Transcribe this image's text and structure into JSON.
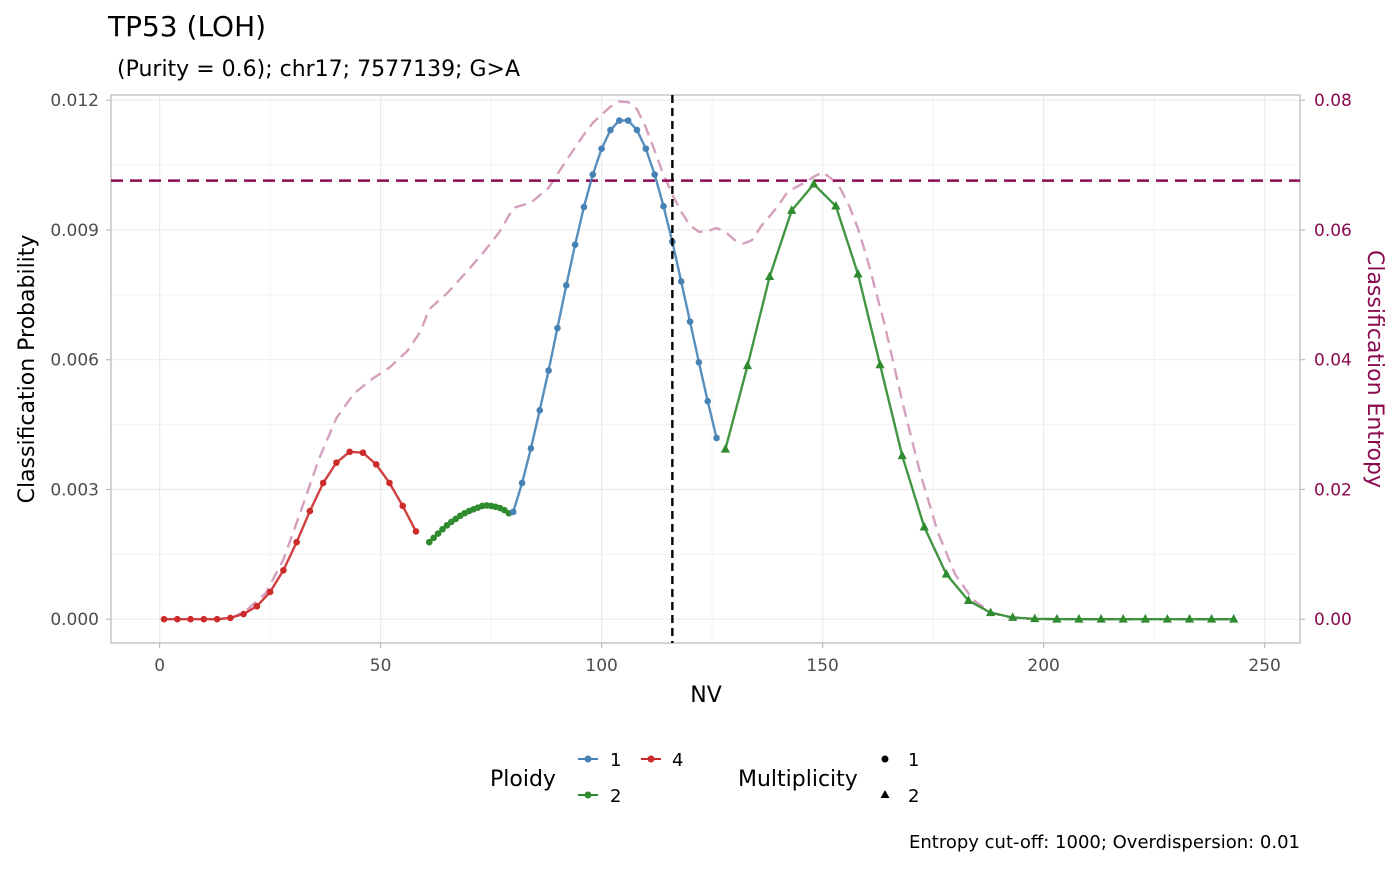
{
  "chart_data": {
    "type": "line",
    "title": "TP53 (LOH)",
    "subtitle": " (Purity = 0.6); chr17; 7577139; G>A",
    "caption": "Entropy cut-off: 1000; Overdispersion: 0.01",
    "xlabel": "NV",
    "ylabel": "Classification Probability",
    "y2label": "Classification Entropy",
    "xlim": [
      -11,
      258
    ],
    "ylim": [
      -0.00055,
      0.01212
    ],
    "y2lim": [
      -0.00367,
      0.0808
    ],
    "xticks": [
      0,
      50,
      100,
      150,
      200,
      250
    ],
    "xtick_labels": [
      "0",
      "50",
      "100",
      "150",
      "200",
      "250"
    ],
    "yticks": [
      0,
      0.003,
      0.006,
      0.009,
      0.012
    ],
    "ytick_labels": [
      "0.000",
      "0.003",
      "0.006",
      "0.009",
      "0.012"
    ],
    "y2ticks": [
      0,
      0.02,
      0.04,
      0.06,
      0.08
    ],
    "y2tick_labels": [
      "0.00",
      "0.02",
      "0.04",
      "0.06",
      "0.08"
    ],
    "grid": true,
    "vline_x": 116,
    "hline_entropy": 0.0676,
    "colors": {
      "ploidy_1": "#4682B4",
      "ploidy_2": "#2E8B2E",
      "ploidy_4": "#CC2B2B",
      "entropy": "#8B0A50",
      "entropy_curve": "#D4A0BE",
      "vline": "#000000",
      "grid": "#EBEBEB",
      "axis_text": "#4D4D4D"
    },
    "legend": {
      "position": "bottom",
      "ploidy_title": "Ploidy",
      "ploidy_items": [
        {
          "label": "1",
          "color": "#4682B4"
        },
        {
          "label": "2",
          "color": "#2E8B2E"
        },
        {
          "label": "4",
          "color": "#CC2B2B"
        }
      ],
      "multiplicity_title": "Multiplicity",
      "multiplicity_items": [
        {
          "label": "1",
          "shape": "circle"
        },
        {
          "label": "2",
          "shape": "triangle"
        }
      ]
    },
    "series": [
      {
        "ploidy": "4",
        "multiplicity": "1",
        "shape": "circle",
        "color": "#CC2B2B",
        "x": [
          1,
          4,
          7,
          10,
          13,
          16,
          19,
          22,
          25,
          28,
          31,
          34,
          37,
          40,
          43,
          46,
          49,
          52,
          55,
          58
        ],
        "y": [
          0,
          0,
          0,
          0,
          0,
          3e-05,
          0.00012,
          0.0003,
          0.00063,
          0.00113,
          0.00178,
          0.0025,
          0.00315,
          0.00362,
          0.00387,
          0.00385,
          0.00358,
          0.00315,
          0.00262,
          0.00203
        ]
      },
      {
        "ploidy": "2",
        "multiplicity": "1",
        "shape": "circle",
        "color": "#2E8B2E",
        "x": [
          61,
          62,
          63,
          64,
          65,
          66,
          67,
          68,
          69,
          70,
          71,
          72,
          73,
          74,
          75,
          76,
          77,
          78,
          79
        ],
        "y": [
          0.00178,
          0.00188,
          0.00198,
          0.00208,
          0.00217,
          0.00225,
          0.00232,
          0.00239,
          0.00245,
          0.0025,
          0.00254,
          0.00258,
          0.00262,
          0.00263,
          0.00262,
          0.0026,
          0.00257,
          0.00252,
          0.00245
        ]
      },
      {
        "ploidy": "1",
        "multiplicity": "1",
        "shape": "circle",
        "color": "#4682B4",
        "x": [
          80,
          82,
          84,
          86,
          88,
          90,
          92,
          94,
          96,
          98,
          100,
          102,
          104,
          106,
          108,
          110,
          112,
          114,
          116,
          118,
          120,
          122,
          124,
          126
        ],
        "y": [
          0.00248,
          0.00315,
          0.00395,
          0.00483,
          0.00575,
          0.00673,
          0.00772,
          0.00866,
          0.00953,
          0.01028,
          0.01088,
          0.01131,
          0.01153,
          0.01153,
          0.01131,
          0.01088,
          0.01028,
          0.00955,
          0.00873,
          0.00781,
          0.00688,
          0.00594,
          0.00504,
          0.00419
        ]
      },
      {
        "ploidy": "2",
        "multiplicity": "2",
        "shape": "triangle",
        "color": "#2E8B2E",
        "x": [
          128,
          133,
          138,
          143,
          148,
          153,
          158,
          163,
          168,
          173,
          178,
          183,
          188,
          193,
          198,
          203,
          208,
          213,
          218,
          223,
          228,
          233,
          238,
          243
        ],
        "y": [
          0.00393,
          0.00586,
          0.00792,
          0.00945,
          0.01006,
          0.00955,
          0.00798,
          0.00588,
          0.00378,
          0.00213,
          0.00104,
          0.00043,
          0.00015,
          4e-05,
          1e-05,
          0,
          0,
          0,
          0,
          0,
          0,
          0,
          0,
          0
        ]
      }
    ],
    "entropy_curve": {
      "x": [
        16,
        20,
        24,
        28,
        32,
        36,
        40,
        44,
        48,
        52,
        56,
        59,
        61,
        65,
        69,
        73,
        77,
        80,
        84,
        88,
        92,
        96,
        98,
        100,
        102,
        104,
        106,
        108,
        110,
        112,
        114,
        116,
        118,
        120,
        122,
        124,
        126,
        128,
        130,
        132,
        134,
        136,
        138,
        140,
        142,
        144,
        146,
        148,
        150,
        152,
        154,
        156,
        158,
        160,
        164,
        168,
        172,
        176,
        180,
        184,
        188,
        192,
        196,
        200,
        210,
        220,
        230,
        240,
        243
      ],
      "y": [
        0,
        0.0016,
        0.004,
        0.0092,
        0.0168,
        0.0246,
        0.031,
        0.0348,
        0.037,
        0.0388,
        0.0413,
        0.0443,
        0.0478,
        0.0502,
        0.0532,
        0.0563,
        0.0598,
        0.0634,
        0.0642,
        0.0665,
        0.0707,
        0.0747,
        0.0765,
        0.0778,
        0.079,
        0.0798,
        0.0797,
        0.0786,
        0.0758,
        0.0722,
        0.0685,
        0.0655,
        0.0628,
        0.0607,
        0.0597,
        0.0598,
        0.0603,
        0.0597,
        0.0585,
        0.0579,
        0.0584,
        0.0605,
        0.0621,
        0.0638,
        0.0658,
        0.0666,
        0.0673,
        0.0682,
        0.0689,
        0.0679,
        0.0664,
        0.0637,
        0.0602,
        0.0558,
        0.0455,
        0.0336,
        0.0227,
        0.0135,
        0.0069,
        0.003,
        0.0011,
        0.0003,
        8e-05,
        3e-05,
        0,
        0,
        0,
        0,
        0
      ]
    }
  }
}
